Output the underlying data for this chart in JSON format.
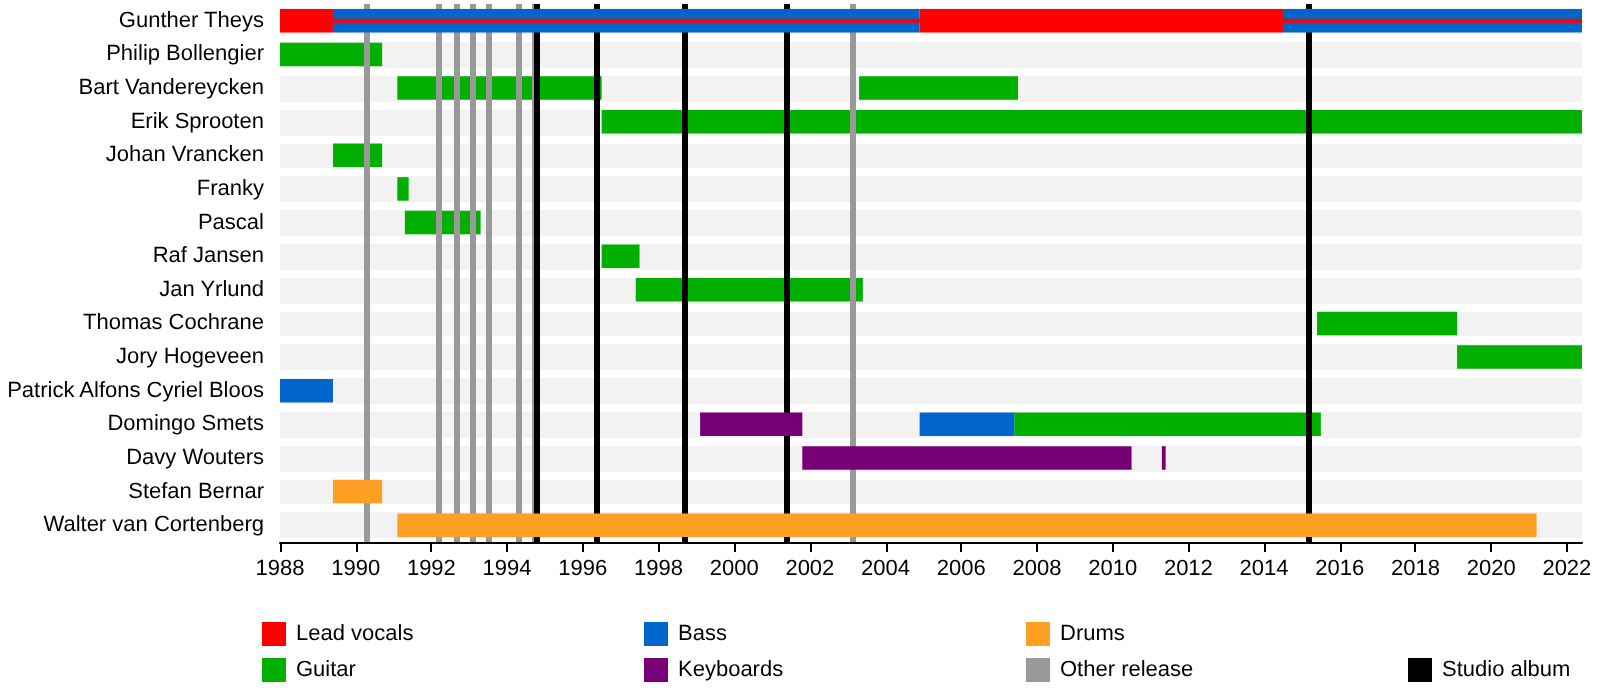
{
  "chart_data": {
    "type": "bar",
    "orientation": "horizontal",
    "categories": [
      "Gunther Theys",
      "Philip Bollengier",
      "Bart Vandereycken",
      "Erik Sprooten",
      "Johan Vrancken",
      "Franky",
      "Pascal",
      "Raf Jansen",
      "Jan Yrlund",
      "Thomas Cochrane",
      "Jory Hogeveen",
      "Patrick Alfons Cyriel Bloos",
      "Domingo Smets",
      "Davy Wouters",
      "Stefan Bernar",
      "Walter van Cortenberg"
    ],
    "series": [
      {
        "name": "Lead vocals",
        "color": "#ff0000",
        "base": [
          1988,
          null,
          null,
          null,
          null,
          null,
          null,
          null,
          null,
          null,
          null,
          null,
          null,
          null,
          null,
          null
        ],
        "values": [
          1.4,
          null,
          null,
          null,
          null,
          null,
          null,
          null,
          null,
          null,
          null,
          null,
          null,
          null,
          null,
          null
        ]
      },
      {
        "name": "Guitar",
        "color": "#00b000",
        "base": [
          null,
          1988,
          1991.1,
          1996.5,
          1989.4,
          1991.1,
          1991.3,
          1996.5,
          1997.4,
          2015.4,
          2019.1,
          null,
          2007.4,
          null,
          null,
          null
        ],
        "values": [
          null,
          2.7,
          5.4,
          25.9,
          1.3,
          0.3,
          2,
          1,
          6,
          3.7,
          3.3,
          null,
          8.1,
          null,
          null,
          null
        ]
      },
      {
        "name": "Bass",
        "color": "#0066cc",
        "base": [
          1989.4,
          null,
          null,
          null,
          null,
          null,
          null,
          null,
          null,
          null,
          null,
          1988,
          2004.9,
          null,
          null,
          null
        ],
        "values": [
          15.5,
          null,
          null,
          null,
          null,
          null,
          null,
          null,
          null,
          null,
          null,
          1.4,
          2.5,
          null,
          null,
          null
        ]
      },
      {
        "name": "Keyboards",
        "color": "#770077",
        "base": [
          null,
          null,
          null,
          null,
          null,
          null,
          null,
          null,
          null,
          null,
          null,
          null,
          1999.1,
          2001.8,
          null,
          null
        ],
        "values": [
          null,
          null,
          null,
          null,
          null,
          null,
          null,
          null,
          null,
          null,
          null,
          null,
          2.7,
          8.7,
          null,
          null
        ]
      },
      {
        "name": "Drums",
        "color": "#ffa024",
        "base": [
          null,
          null,
          null,
          null,
          null,
          null,
          null,
          null,
          null,
          null,
          null,
          null,
          null,
          null,
          1989.4,
          1991.1
        ],
        "values": [
          null,
          null,
          null,
          null,
          null,
          null,
          null,
          null,
          null,
          null,
          null,
          null,
          null,
          null,
          1.3,
          30.1
        ]
      },
      {
        "color": "#0066cc",
        "base": [
          2014.5,
          null,
          null,
          null,
          null,
          null,
          null,
          null,
          null,
          null,
          null,
          null,
          null,
          null,
          null,
          null
        ],
        "values": [
          7.9,
          null,
          null,
          null,
          null,
          null,
          null,
          null,
          null,
          null,
          null,
          null,
          null,
          null,
          null,
          null
        ]
      },
      {
        "color": "#ff0000",
        "base": [
          2004.9,
          null,
          null,
          null,
          null,
          null,
          null,
          null,
          null,
          null,
          null,
          null,
          null,
          null,
          null,
          null
        ],
        "values": [
          9.6,
          null,
          null,
          null,
          null,
          null,
          null,
          null,
          null,
          null,
          null,
          null,
          null,
          null,
          null,
          null
        ]
      },
      {
        "color": "#ff0000",
        "base": [
          1989.4,
          null,
          null,
          null,
          null,
          null,
          null,
          null,
          null,
          null,
          null,
          null,
          null,
          null,
          null,
          null
        ],
        "values": [
          33,
          null,
          null,
          null,
          null,
          null,
          null,
          null,
          null,
          null,
          null,
          null,
          null,
          null,
          null,
          null
        ]
      },
      {
        "color": "#00b000",
        "base": [
          null,
          null,
          2003.3,
          null,
          null,
          null,
          null,
          null,
          null,
          null,
          null,
          null,
          null,
          null,
          null,
          null
        ],
        "values": [
          null,
          null,
          4.2,
          null,
          null,
          null,
          null,
          null,
          null,
          null,
          null,
          null,
          null,
          null,
          null,
          null
        ]
      },
      {
        "color": "#770077",
        "base": [
          null,
          null,
          null,
          null,
          null,
          null,
          null,
          null,
          null,
          null,
          null,
          null,
          null,
          2011.3,
          null,
          null
        ],
        "values": [
          null,
          null,
          null,
          null,
          null,
          null,
          null,
          null,
          null,
          null,
          null,
          null,
          null,
          0.1,
          null,
          null
        ]
      }
    ],
    "xlim": [
      1988,
      2022.4
    ],
    "xticks": [
      1988,
      1990,
      1992,
      1994,
      1996,
      1998,
      2000,
      2002,
      2004,
      2006,
      2008,
      2010,
      2012,
      2014,
      2016,
      2018,
      2020,
      2022
    ],
    "ref_lines": [
      {
        "axis": "x",
        "value": 1990.3,
        "label": "Other release",
        "color": "#999999"
      },
      {
        "axis": "x",
        "value": 1992.2,
        "color": "#999999"
      },
      {
        "axis": "x",
        "value": 1992.65,
        "color": "#999999"
      },
      {
        "axis": "x",
        "value": 1993.1,
        "color": "#999999"
      },
      {
        "axis": "x",
        "value": 1993.5,
        "color": "#999999"
      },
      {
        "axis": "x",
        "value": 1994.3,
        "color": "#999999"
      },
      {
        "axis": "x",
        "value": 1994.7,
        "color": "#999999"
      },
      {
        "axis": "x",
        "value": 2003.1,
        "color": "#999999"
      },
      {
        "axis": "x",
        "value": 1994.8,
        "label": "Studio album",
        "color": "#000000"
      },
      {
        "axis": "x",
        "value": 1996.35,
        "color": "#000000"
      },
      {
        "axis": "x",
        "value": 1998.7,
        "color": "#000000"
      },
      {
        "axis": "x",
        "value": 2001.4,
        "color": "#000000"
      },
      {
        "axis": "x",
        "value": 2015.2,
        "color": "#000000"
      }
    ],
    "grid": "y",
    "legend": "bottom"
  }
}
